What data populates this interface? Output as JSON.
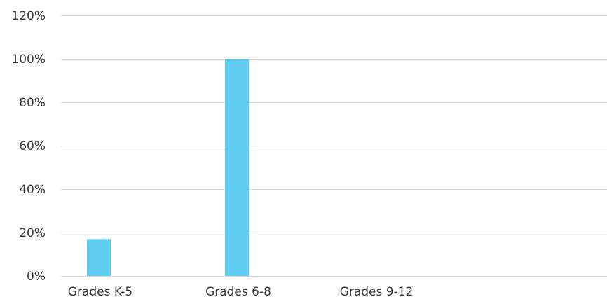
{
  "chart_data": {
    "type": "bar",
    "categories": [
      "Grades K-5",
      "Grades 6-8",
      "Grades 9-12"
    ],
    "values": [
      17,
      100,
      0
    ],
    "value_unit": "%",
    "ylim": [
      0,
      120
    ],
    "yticks": [
      "0%",
      "20%",
      "40%",
      "60%",
      "80%",
      "100%",
      "120%"
    ],
    "ytick_values": [
      0,
      20,
      40,
      60,
      80,
      100,
      120
    ],
    "grid": true,
    "legend": "none",
    "title": "",
    "xlabel": "",
    "ylabel": "",
    "bar_color": "#5ecbef",
    "grid_color": "#d9d9d9",
    "text_color": "#3a3a3a"
  }
}
